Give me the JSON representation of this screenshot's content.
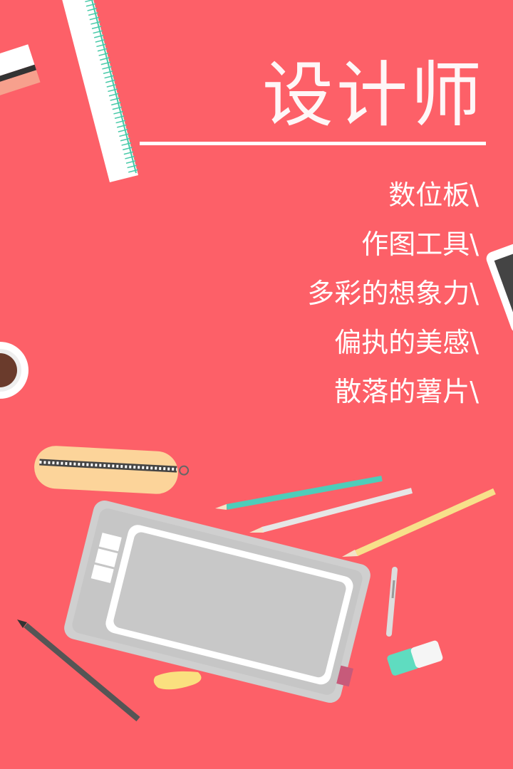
{
  "title": "设计师",
  "items": [
    "数位板\\",
    "作图工具\\",
    "多彩的想象力\\",
    "偏执的美感\\",
    "散落的薯片\\"
  ]
}
